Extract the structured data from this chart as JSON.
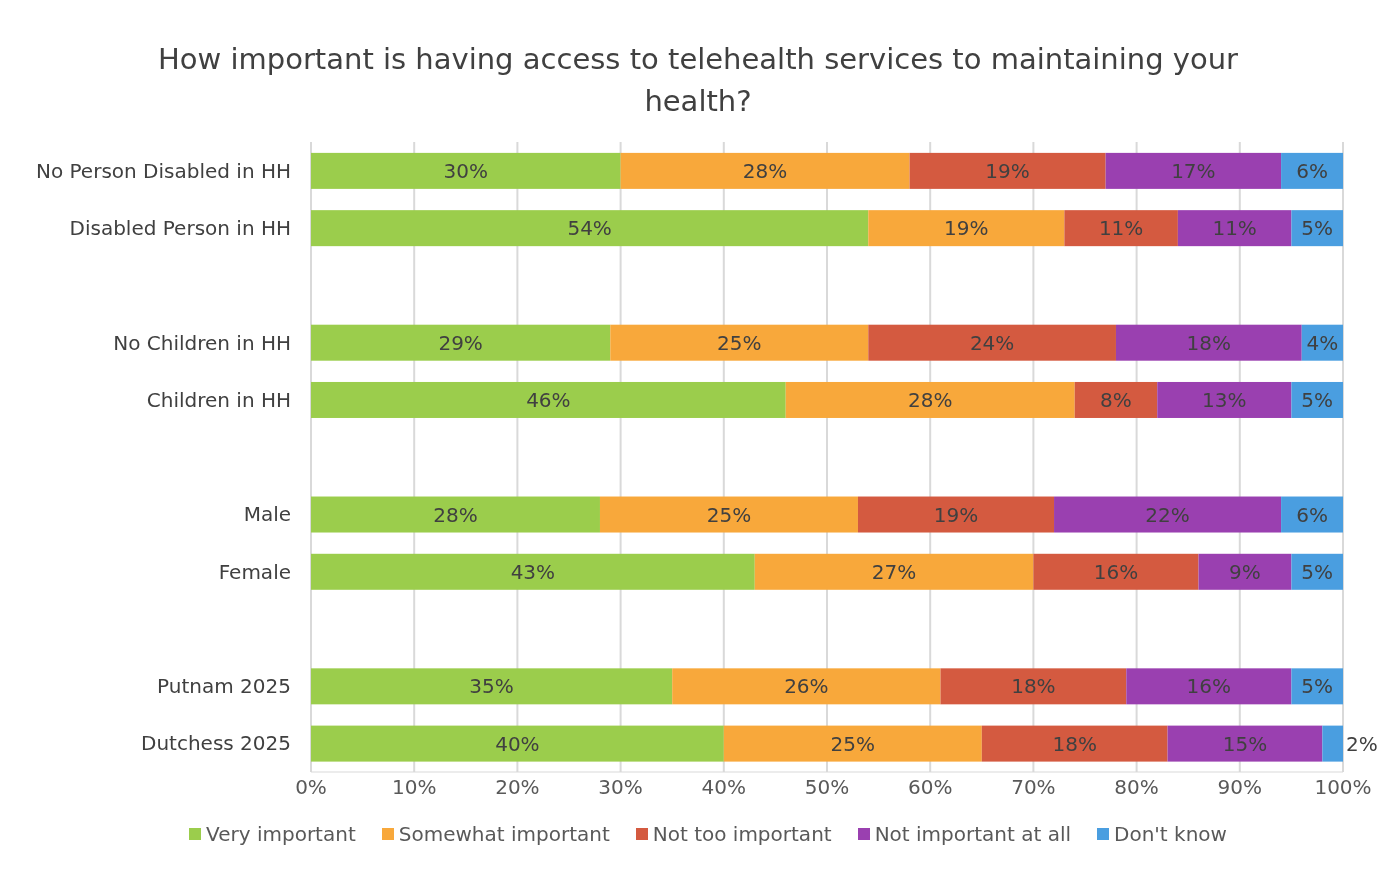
{
  "chart_data": {
    "type": "bar",
    "orientation": "horizontal",
    "stacked": true,
    "title": "How important is having access to telehealth services to maintaining your health?",
    "categories": [
      "No Person Disabled in HH",
      "Disabled Person  in HH",
      null,
      "No Children in HH",
      "Children in HH",
      null,
      "Male",
      "Female",
      null,
      "Putnam 2025",
      "Dutchess 2025"
    ],
    "series": [
      {
        "name": "Very important",
        "color": "#9bcd4c",
        "values": [
          30,
          54,
          null,
          29,
          46,
          null,
          28,
          43,
          null,
          35,
          40
        ],
        "value_labels": [
          "30%",
          "54%",
          null,
          "29%",
          "46%",
          null,
          "28%",
          "43%",
          null,
          "35%",
          "40%"
        ]
      },
      {
        "name": "Somewhat important",
        "color": "#f8a83b",
        "values": [
          28,
          19,
          null,
          25,
          28,
          null,
          25,
          27,
          null,
          26,
          25
        ],
        "value_labels": [
          "28%",
          "19%",
          null,
          "25%",
          "28%",
          null,
          "25%",
          "27%",
          null,
          "26%",
          "25%"
        ]
      },
      {
        "name": "Not too important",
        "color": "#d45a40",
        "values": [
          19,
          11,
          null,
          24,
          8,
          null,
          19,
          16,
          null,
          18,
          18
        ],
        "value_labels": [
          "19%",
          "11%",
          null,
          "24%",
          "8%",
          null,
          "19%",
          "16%",
          null,
          "18%",
          "18%"
        ]
      },
      {
        "name": "Not important at all",
        "color": "#9a40b0",
        "values": [
          17,
          11,
          null,
          18,
          13,
          null,
          22,
          9,
          null,
          16,
          15
        ],
        "value_labels": [
          "17%",
          "11%",
          null,
          "18%",
          "13%",
          null,
          "22%",
          "9%",
          null,
          "16%",
          "15%"
        ]
      },
      {
        "name": "Don't know",
        "color": "#4a9ee0",
        "values": [
          6,
          5,
          null,
          4,
          5,
          null,
          6,
          5,
          null,
          5,
          2
        ],
        "value_labels": [
          "6%",
          "5%",
          null,
          "4%",
          "5%",
          null,
          "6%",
          "5%",
          null,
          "5%",
          "2%"
        ]
      }
    ],
    "xlim": [
      0,
      100
    ],
    "xticks": [
      {
        "value": 0,
        "label": "0%"
      },
      {
        "value": 10,
        "label": "10%"
      },
      {
        "value": 20,
        "label": "20%"
      },
      {
        "value": 30,
        "label": "30%"
      },
      {
        "value": 40,
        "label": "40%"
      },
      {
        "value": 50,
        "label": "50%"
      },
      {
        "value": 60,
        "label": "60%"
      },
      {
        "value": 70,
        "label": "70%"
      },
      {
        "value": 80,
        "label": "80%"
      },
      {
        "value": 90,
        "label": "90%"
      },
      {
        "value": 100,
        "label": "100%"
      }
    ],
    "grid": "x",
    "legend": "bottom"
  }
}
